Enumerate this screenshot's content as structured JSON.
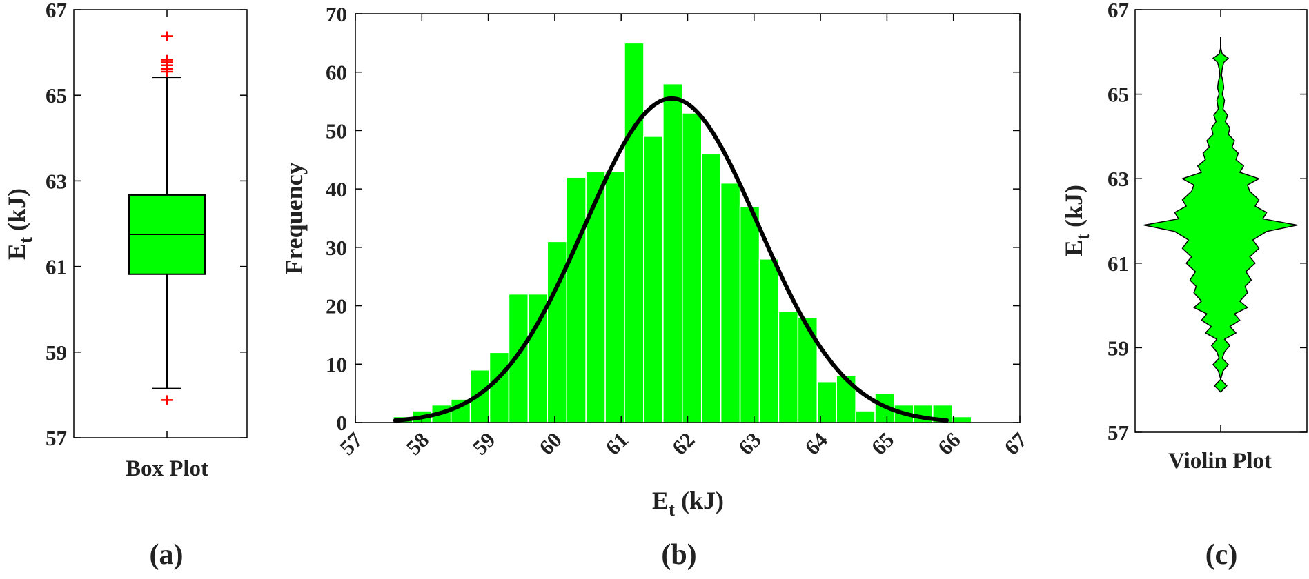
{
  "colors": {
    "fill": "#00ff00",
    "outline": "#000000",
    "outlier": "#ff0000",
    "fit_curve": "#000000",
    "bar_edge": "#ffffff"
  },
  "panel_labels": [
    "(a)",
    "(b)",
    "(c)"
  ],
  "chart_data": [
    {
      "type": "box",
      "panel": "(a)",
      "category": "Box Plot",
      "ylabel": "E",
      "ylabel_subscript": "t",
      "ylabel_unit": " (kJ)",
      "ylim": [
        57,
        67
      ],
      "yticks": [
        57,
        59,
        61,
        63,
        65,
        67
      ],
      "stats": {
        "whisker_low": 58.15,
        "q1": 60.82,
        "median": 61.75,
        "q3": 62.67,
        "whisker_high": 65.42
      },
      "outliers": [
        57.88,
        65.55,
        65.62,
        65.7,
        65.77,
        65.83,
        66.38
      ]
    },
    {
      "type": "bar",
      "subtype": "histogram",
      "panel": "(b)",
      "xlabel": "E",
      "xlabel_subscript": "t",
      "xlabel_unit": " (kJ)",
      "ylabel": "Frequency",
      "xlim": [
        57,
        67
      ],
      "ylim": [
        0,
        70
      ],
      "xticks": [
        57,
        58,
        59,
        60,
        61,
        62,
        63,
        64,
        65,
        66,
        67
      ],
      "yticks": [
        0,
        10,
        20,
        30,
        40,
        50,
        60,
        70
      ],
      "bin_edges": [
        57.57,
        57.86,
        58.15,
        58.44,
        58.73,
        59.02,
        59.31,
        59.6,
        59.89,
        60.18,
        60.47,
        60.76,
        61.05,
        61.34,
        61.63,
        61.92,
        62.21,
        62.5,
        62.79,
        63.08,
        63.37,
        63.66,
        63.95,
        64.24,
        64.53,
        64.82,
        65.11,
        65.4,
        65.69,
        65.98,
        66.27
      ],
      "values": [
        1,
        2,
        3,
        4,
        9,
        12,
        22,
        22,
        31,
        42,
        43,
        43,
        65,
        49,
        58,
        53,
        46,
        41,
        37,
        28,
        19,
        18,
        7,
        8,
        2,
        5,
        3,
        3,
        3,
        1
      ],
      "fit": {
        "type": "normal",
        "mean": 61.76,
        "sd": 1.31,
        "peak": 55.5,
        "x_range": [
          57.6,
          65.9
        ]
      }
    },
    {
      "type": "violin",
      "panel": "(c)",
      "category": "Violin Plot",
      "ylabel": "E",
      "ylabel_subscript": "t",
      "ylabel_unit": " (kJ)",
      "ylim": [
        57,
        67
      ],
      "yticks": [
        57,
        59,
        61,
        63,
        65,
        67
      ],
      "range": [
        57.95,
        66.35
      ],
      "profile": [
        [
          57.95,
          0.0
        ],
        [
          58.1,
          0.08
        ],
        [
          58.25,
          0.0
        ],
        [
          58.45,
          0.03
        ],
        [
          58.6,
          0.1
        ],
        [
          58.75,
          0.02
        ],
        [
          58.9,
          0.05
        ],
        [
          59.05,
          0.12
        ],
        [
          59.2,
          0.05
        ],
        [
          59.35,
          0.2
        ],
        [
          59.5,
          0.12
        ],
        [
          59.65,
          0.25
        ],
        [
          59.8,
          0.18
        ],
        [
          59.95,
          0.35
        ],
        [
          60.1,
          0.25
        ],
        [
          60.3,
          0.35
        ],
        [
          60.45,
          0.32
        ],
        [
          60.6,
          0.4
        ],
        [
          60.8,
          0.33
        ],
        [
          61.0,
          0.45
        ],
        [
          61.15,
          0.38
        ],
        [
          61.35,
          0.5
        ],
        [
          61.55,
          0.42
        ],
        [
          61.75,
          0.6
        ],
        [
          61.9,
          1.0
        ],
        [
          62.05,
          0.55
        ],
        [
          62.2,
          0.6
        ],
        [
          62.35,
          0.45
        ],
        [
          62.5,
          0.5
        ],
        [
          62.7,
          0.38
        ],
        [
          62.85,
          0.35
        ],
        [
          63.0,
          0.5
        ],
        [
          63.15,
          0.25
        ],
        [
          63.3,
          0.3
        ],
        [
          63.45,
          0.2
        ],
        [
          63.6,
          0.23
        ],
        [
          63.75,
          0.15
        ],
        [
          63.9,
          0.18
        ],
        [
          64.05,
          0.1
        ],
        [
          64.2,
          0.12
        ],
        [
          64.35,
          0.06
        ],
        [
          64.5,
          0.09
        ],
        [
          64.65,
          0.03
        ],
        [
          64.85,
          0.05
        ],
        [
          65.0,
          0.02
        ],
        [
          65.15,
          0.04
        ],
        [
          65.3,
          0.03
        ],
        [
          65.45,
          0.01
        ],
        [
          65.6,
          0.02
        ],
        [
          65.75,
          0.04
        ],
        [
          65.85,
          0.1
        ],
        [
          65.95,
          0.02
        ],
        [
          66.1,
          0.0
        ],
        [
          66.35,
          0.0
        ]
      ]
    }
  ]
}
